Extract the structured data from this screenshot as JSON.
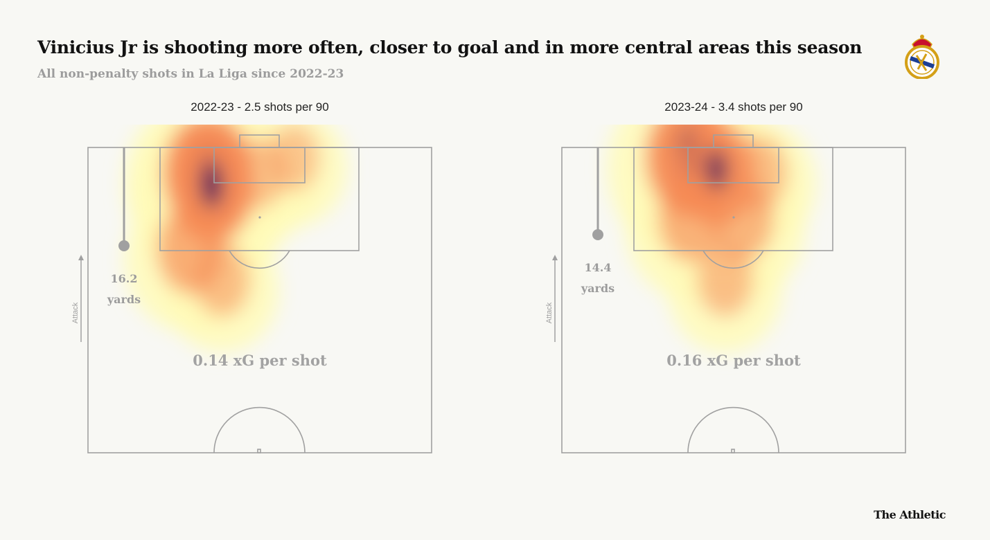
{
  "title": "Vinicius Jr is shooting more often, closer to goal and in more central areas this season",
  "subtitle": "All non-penalty shots in La Liga since 2022-23",
  "brand": "The Athletic",
  "colors": {
    "background": "#f8f8f4",
    "pitch_line": "#a0a0a0",
    "heat_low": "#fffbb8",
    "heat_mid": "#f68a55",
    "heat_high": "#3b0d5c"
  },
  "chart_data": [
    {
      "type": "heatmap",
      "title": "2022-23 - 2.5 shots per 90",
      "attack_label": "Attack",
      "avg_distance": 16.2,
      "avg_distance_value": "16.2",
      "avg_distance_unit": "yards",
      "xg_per_shot_label": "0.14 xG per shot",
      "shots_per_90": 2.5,
      "hotspots": [
        {
          "x": -0.3,
          "y": 0.05,
          "intensity": 1.0
        },
        {
          "x": -0.28,
          "y": 0.1,
          "intensity": 0.9
        },
        {
          "x": -0.4,
          "y": 0.3,
          "intensity": 0.55
        },
        {
          "x": -0.22,
          "y": 0.4,
          "intensity": 0.3
        },
        {
          "x": 0.0,
          "y": 0.05,
          "intensity": 0.25
        },
        {
          "x": 0.2,
          "y": 0.0,
          "intensity": 0.2
        }
      ]
    },
    {
      "type": "heatmap",
      "title": "2023-24 - 3.4 shots per 90",
      "attack_label": "Attack",
      "avg_distance": 14.4,
      "avg_distance_value": "14.4",
      "avg_distance_unit": "yards",
      "xg_per_shot_label": "0.16 xG per shot",
      "shots_per_90": 3.4,
      "hotspots": [
        {
          "x": -0.25,
          "y": 0.0,
          "intensity": 1.0
        },
        {
          "x": -0.1,
          "y": 0.05,
          "intensity": 0.8
        },
        {
          "x": -0.25,
          "y": 0.2,
          "intensity": 0.5
        },
        {
          "x": 0.05,
          "y": 0.2,
          "intensity": 0.45
        },
        {
          "x": 0.15,
          "y": 0.05,
          "intensity": 0.3
        },
        {
          "x": -0.05,
          "y": 0.4,
          "intensity": 0.3
        }
      ]
    }
  ]
}
